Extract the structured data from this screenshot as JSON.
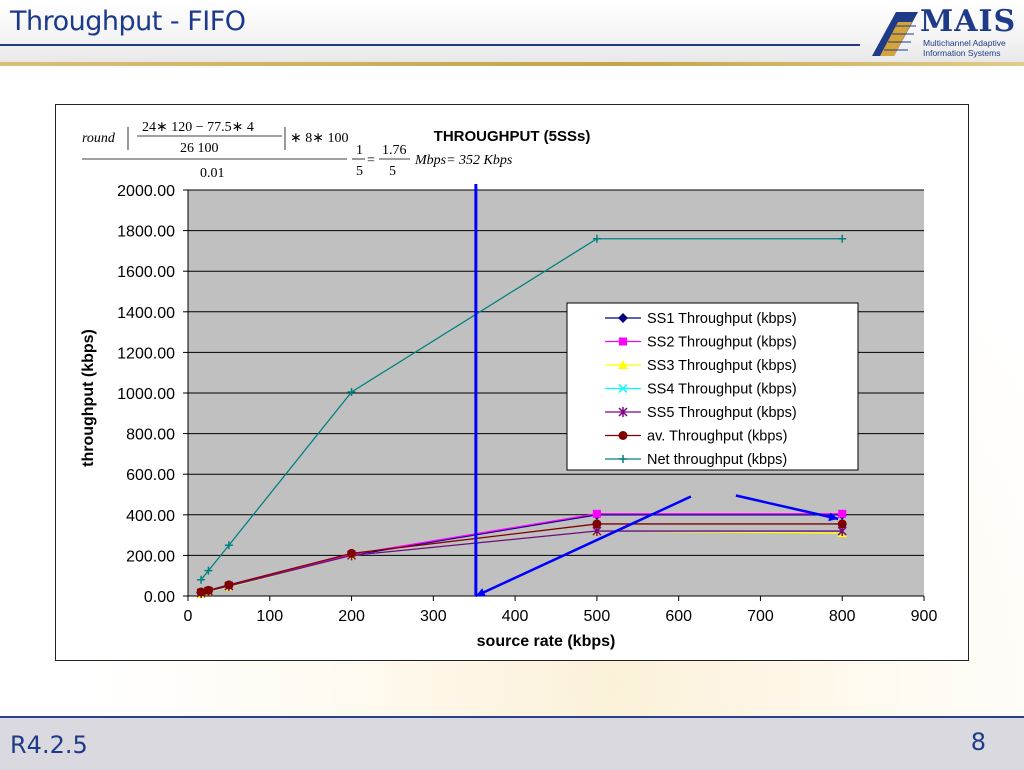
{
  "slide": {
    "title": "Throughput - FIFO",
    "footer_left": "R4.2.5",
    "page_number": "8"
  },
  "logo": {
    "name": "MAIS",
    "subtitle_line1": "Multichannel Adaptive",
    "subtitle_line2": "Information Systems"
  },
  "formula": {
    "round": "round",
    "num": "24∗ 120 − 77.5∗ 4",
    "den": "26 100",
    "times": "∗ 8∗ 100",
    "outer_den": "0.01",
    "frac1_num": "1",
    "frac1_den": "5",
    "eq": "=",
    "frac2_num": "1.76",
    "frac2_den": "5",
    "tail": "Mbps= 352 Kbps"
  },
  "chart_data": {
    "type": "line",
    "title": "THROUGHPUT (5SSs)",
    "xlabel": "source rate (kbps)",
    "ylabel": "throughput (kbps)",
    "xlim": [
      0,
      900
    ],
    "ylim": [
      0,
      2000
    ],
    "xticks": [
      "0",
      "100",
      "200",
      "300",
      "400",
      "500",
      "600",
      "700",
      "800",
      "900"
    ],
    "yticks": [
      "0.00",
      "200.00",
      "400.00",
      "600.00",
      "800.00",
      "1000.00",
      "1200.00",
      "1400.00",
      "1600.00",
      "1800.00",
      "2000.00"
    ],
    "grid": "horizontal",
    "legend": "right-center",
    "series": [
      {
        "name": "SS1 Throughput (kbps)",
        "color": "#000080",
        "marker": "diamond",
        "x": [
          16,
          25,
          50,
          200,
          500,
          800
        ],
        "y": [
          16,
          25,
          50,
          200,
          400,
          400
        ]
      },
      {
        "name": "SS2 Throughput (kbps)",
        "color": "#ff00ff",
        "marker": "square",
        "x": [
          16,
          25,
          50,
          200,
          500,
          800
        ],
        "y": [
          16,
          25,
          50,
          205,
          405,
          405
        ]
      },
      {
        "name": "SS3 Throughput (kbps)",
        "color": "#ffff00",
        "marker": "triangle",
        "x": [
          16,
          25,
          50,
          200,
          500,
          800
        ],
        "y": [
          10,
          22,
          45,
          200,
          320,
          310
        ]
      },
      {
        "name": "SS4 Throughput (kbps)",
        "color": "#00ffff",
        "marker": "x",
        "x": [
          16,
          25,
          50,
          200,
          500,
          800
        ],
        "y": [
          14,
          24,
          48,
          200,
          320,
          320
        ]
      },
      {
        "name": "SS5 Throughput (kbps)",
        "color": "#800080",
        "marker": "star",
        "x": [
          16,
          25,
          50,
          200,
          500,
          800
        ],
        "y": [
          15,
          25,
          49,
          200,
          320,
          320
        ]
      },
      {
        "name": "av. Throughput (kbps)",
        "color": "#800000",
        "marker": "circle",
        "x": [
          16,
          25,
          50,
          200,
          500,
          800
        ],
        "y": [
          20,
          28,
          55,
          210,
          355,
          355
        ]
      },
      {
        "name": "Net throughput (kbps)",
        "color": "#008080",
        "marker": "plus",
        "x": [
          16,
          25,
          50,
          200,
          500,
          800
        ],
        "y": [
          80,
          125,
          250,
          1005,
          1760,
          1760
        ]
      }
    ],
    "annotations": {
      "vertical_line_x": 352,
      "line_color": "#0000ff",
      "arrows": [
        {
          "from": [
            615,
            490
          ],
          "to": [
            352,
            0
          ]
        },
        {
          "from": [
            670,
            495
          ],
          "to": [
            795,
            380
          ]
        }
      ]
    }
  }
}
